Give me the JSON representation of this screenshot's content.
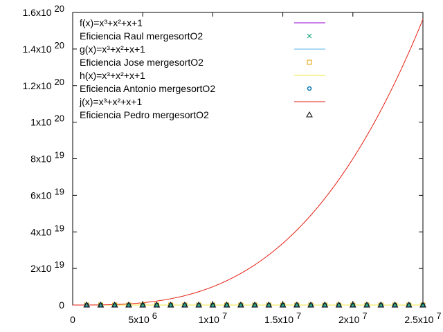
{
  "chart_data": {
    "type": "line",
    "title": "",
    "xlabel": "",
    "ylabel": "",
    "xlim": [
      0,
      25000000
    ],
    "ylim": [
      0,
      1.6e+20
    ],
    "grid": false,
    "legend_position": "top-left",
    "x_ticks": [
      {
        "value": 0,
        "mantissa": "0",
        "exp": ""
      },
      {
        "value": 5000000,
        "mantissa": "5x10",
        "exp": "6"
      },
      {
        "value": 10000000,
        "mantissa": "1x10",
        "exp": "7"
      },
      {
        "value": 15000000,
        "mantissa": "1.5x10",
        "exp": "7"
      },
      {
        "value": 20000000,
        "mantissa": "2x10",
        "exp": "7"
      },
      {
        "value": 25000000,
        "mantissa": "2.5x10",
        "exp": "7"
      }
    ],
    "y_ticks": [
      {
        "value": 0,
        "mantissa": "0",
        "exp": ""
      },
      {
        "value": 2e+19,
        "mantissa": "2x10",
        "exp": "19"
      },
      {
        "value": 4e+19,
        "mantissa": "4x10",
        "exp": "19"
      },
      {
        "value": 6e+19,
        "mantissa": "6x10",
        "exp": "19"
      },
      {
        "value": 8e+19,
        "mantissa": "8x10",
        "exp": "19"
      },
      {
        "value": 1e+20,
        "mantissa": "1x10",
        "exp": "20"
      },
      {
        "value": 1.2e+20,
        "mantissa": "1.2x10",
        "exp": "20"
      },
      {
        "value": 1.4e+20,
        "mantissa": "1.4x10",
        "exp": "20"
      },
      {
        "value": 1.6e+20,
        "mantissa": "1.6x10",
        "exp": "20"
      }
    ],
    "series": [
      {
        "name": "f(x)=x³+x²+x+1",
        "kind": "line",
        "color": "#9400d3",
        "coef": 0
      },
      {
        "name": "Eficiencia Raul mergesortO2",
        "kind": "points",
        "marker": "x",
        "color": "#009e73"
      },
      {
        "name": "g(x)=x³+x²+x+1",
        "kind": "line",
        "color": "#56b4e9",
        "coef": 0
      },
      {
        "name": "Eficiencia Jose mergesortO2",
        "kind": "points",
        "marker": "square",
        "color": "#e69f00"
      },
      {
        "name": "h(x)=x³+x²+x+1",
        "kind": "line",
        "color": "#f0e442",
        "coef": 0
      },
      {
        "name": "Eficiencia Antonio mergesortO2",
        "kind": "points",
        "marker": "circle",
        "color": "#0072b2"
      },
      {
        "name": "j(x)=x³+x²+x+1",
        "kind": "line",
        "color": "#e51e10",
        "coef": 0.01
      },
      {
        "name": "Eficiencia Pedro mergesortO2",
        "kind": "points",
        "marker": "triangle",
        "color": "#000000"
      }
    ],
    "point_x": [
      1000000,
      2000000,
      3000000,
      4000000,
      5000000,
      6000000,
      7000000,
      8000000,
      9000000,
      10000000,
      11000000,
      12000000,
      13000000,
      14000000,
      15000000,
      16000000,
      17000000,
      18000000,
      19000000,
      20000000,
      21000000,
      22000000,
      23000000,
      24000000,
      25000000
    ],
    "point_y": 0
  }
}
